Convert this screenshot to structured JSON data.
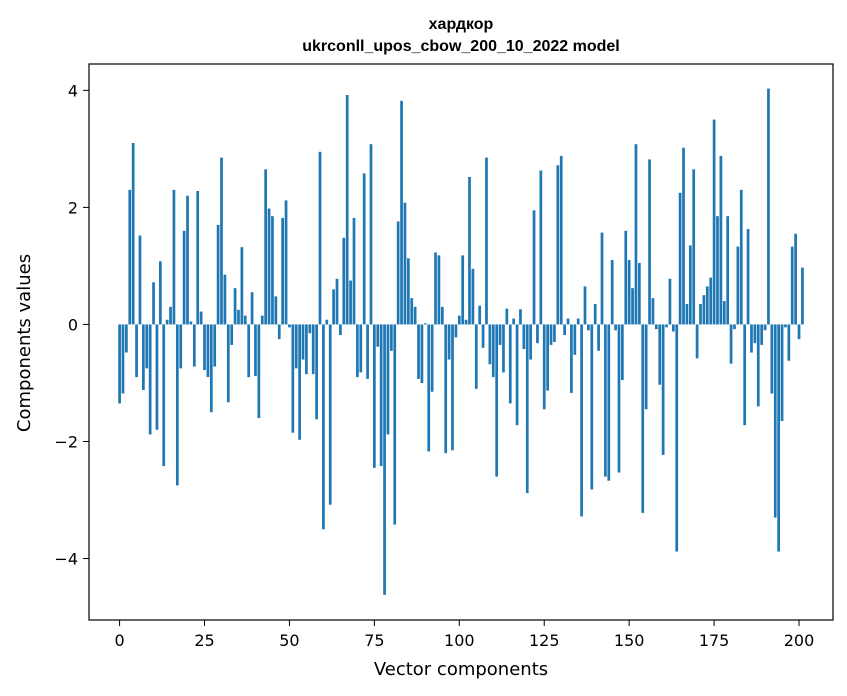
{
  "chart_data": {
    "type": "bar",
    "title": "хардкор",
    "subtitle": "ukrconll_upos_cbow_200_10_2022 model",
    "xlabel": "Vector components",
    "ylabel": "Components values",
    "xlim": [
      -9,
      210
    ],
    "ylim": [
      -5.05,
      4.45
    ],
    "xticks": [
      0,
      25,
      50,
      75,
      100,
      125,
      150,
      175,
      200
    ],
    "yticks": [
      -4,
      -2,
      0,
      2,
      4
    ],
    "xtick_labels": [
      "0",
      "25",
      "50",
      "75",
      "100",
      "125",
      "150",
      "175",
      "200"
    ],
    "ytick_labels": [
      "−4",
      "−2",
      "0",
      "2",
      "4"
    ],
    "grid": false,
    "bar_color": "#1f77b4",
    "x_start": 0,
    "values": [
      -1.35,
      -1.18,
      -0.48,
      2.3,
      3.1,
      -0.9,
      1.52,
      -1.12,
      -0.75,
      -1.88,
      0.72,
      -1.8,
      1.08,
      -2.42,
      0.08,
      0.3,
      2.3,
      -2.75,
      -0.75,
      1.6,
      2.2,
      0.05,
      -0.72,
      2.28,
      0.22,
      -0.78,
      -0.9,
      -1.5,
      -0.72,
      1.7,
      2.85,
      0.85,
      -1.33,
      -0.35,
      0.62,
      0.25,
      1.32,
      0.15,
      -0.9,
      0.55,
      -0.88,
      -1.6,
      0.15,
      2.65,
      1.98,
      1.85,
      0.48,
      -0.25,
      1.82,
      2.12,
      -0.05,
      -1.85,
      -0.75,
      -1.97,
      -0.6,
      -0.85,
      -0.15,
      -0.85,
      -1.62,
      2.95,
      -3.5,
      0.08,
      -3.08,
      0.6,
      0.78,
      -0.18,
      1.48,
      3.92,
      0.75,
      1.82,
      -0.9,
      -0.82,
      2.58,
      -0.93,
      3.08,
      -2.45,
      -0.38,
      -2.42,
      -4.62,
      -1.88,
      -0.45,
      -3.42,
      1.76,
      3.82,
      2.08,
      1.13,
      0.45,
      0.3,
      -0.93,
      -1.0,
      0.02,
      -2.17,
      -1.15,
      1.23,
      1.18,
      0.3,
      -2.2,
      -0.6,
      -2.15,
      -0.22,
      0.15,
      1.18,
      0.08,
      2.52,
      0.95,
      -1.1,
      0.32,
      -0.4,
      2.85,
      -0.68,
      -0.9,
      -2.6,
      -0.35,
      -0.82,
      0.27,
      -1.35,
      0.1,
      -1.72,
      0.26,
      -0.42,
      -2.88,
      -0.6,
      1.95,
      -0.32,
      2.63,
      -1.45,
      -1.13,
      -0.35,
      -0.3,
      2.72,
      2.88,
      -0.18,
      0.1,
      -1.17,
      -0.52,
      0.1,
      -3.28,
      0.65,
      -0.1,
      -2.82,
      0.35,
      -0.45,
      1.57,
      -2.6,
      -2.67,
      1.1,
      -0.1,
      -2.53,
      -0.95,
      1.6,
      1.1,
      0.62,
      3.08,
      1.05,
      -3.22,
      -1.45,
      2.82,
      0.45,
      -0.08,
      -1.03,
      -2.23,
      -0.05,
      0.78,
      -0.12,
      -3.88,
      2.25,
      3.02,
      0.35,
      1.35,
      2.65,
      -0.58,
      0.35,
      0.5,
      0.65,
      0.8,
      3.5,
      1.85,
      2.88,
      0.4,
      1.85,
      -0.67,
      -0.08,
      1.33,
      2.3,
      -1.72,
      1.63,
      -0.48,
      -0.32,
      -1.4,
      -0.35,
      -0.1,
      4.03,
      -1.18,
      -3.3,
      -3.88,
      -1.65,
      -0.05,
      -0.62,
      1.33,
      1.55,
      -0.25,
      0.97
    ]
  }
}
